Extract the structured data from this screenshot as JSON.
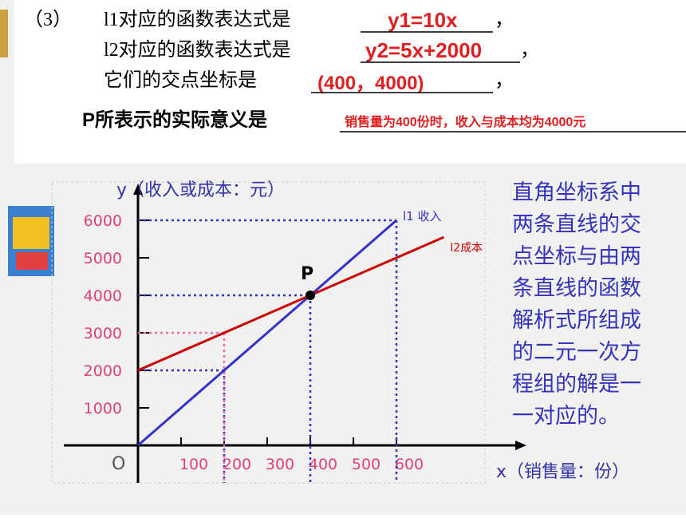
{
  "slide": {
    "q_num": "（3）",
    "line1": "l1对应的函数表达式是",
    "answer1": "y1=10x",
    "sep1": "，",
    "line2": "l2对应的函数表达式是",
    "answer2": "y2=5x+2000",
    "sep2": "，",
    "line3": "它们的交点坐标是",
    "answer3": "(400，4000)",
    "sep3": "，",
    "line4": "P所表示的实际意义是",
    "answer4": "销售量为400份时，收入与成本均为4000元",
    "note_lines": [
      "直角坐标系中",
      "两条直线的交",
      "点坐标与由两",
      "条直线的函数",
      "解析式所组成",
      "的二元一次方",
      "程组的解是一",
      "一对应的。"
    ]
  },
  "chart_data": {
    "type": "line",
    "x_label": "x（销售量：份）",
    "y_label": "y（收入或成本：元）",
    "origin_label": "O",
    "xlim": [
      0,
      800
    ],
    "ylim": [
      0,
      7000
    ],
    "xticks": [
      100,
      200,
      300,
      400,
      500,
      600
    ],
    "yticks": [
      1000,
      2000,
      3000,
      4000,
      5000,
      6000
    ],
    "series": [
      {
        "name": "l1 收入",
        "color": "#3333cc",
        "x": [
          0,
          600
        ],
        "values": [
          0,
          6000
        ]
      },
      {
        "name": "l2成本",
        "color": "#cc0000",
        "x": [
          0,
          710
        ],
        "values": [
          2000,
          5550
        ]
      }
    ],
    "point": {
      "label": "P",
      "x": 400,
      "y": 4000
    },
    "guides": [
      {
        "x": 200,
        "y": 2000,
        "color": "#3333cc"
      },
      {
        "x": 400,
        "y": 4000,
        "color": "#3333cc"
      },
      {
        "x": 600,
        "y": 6000,
        "color": "#3333cc"
      },
      {
        "x": 200,
        "y": 3000,
        "color": "#ff66aa"
      }
    ]
  }
}
